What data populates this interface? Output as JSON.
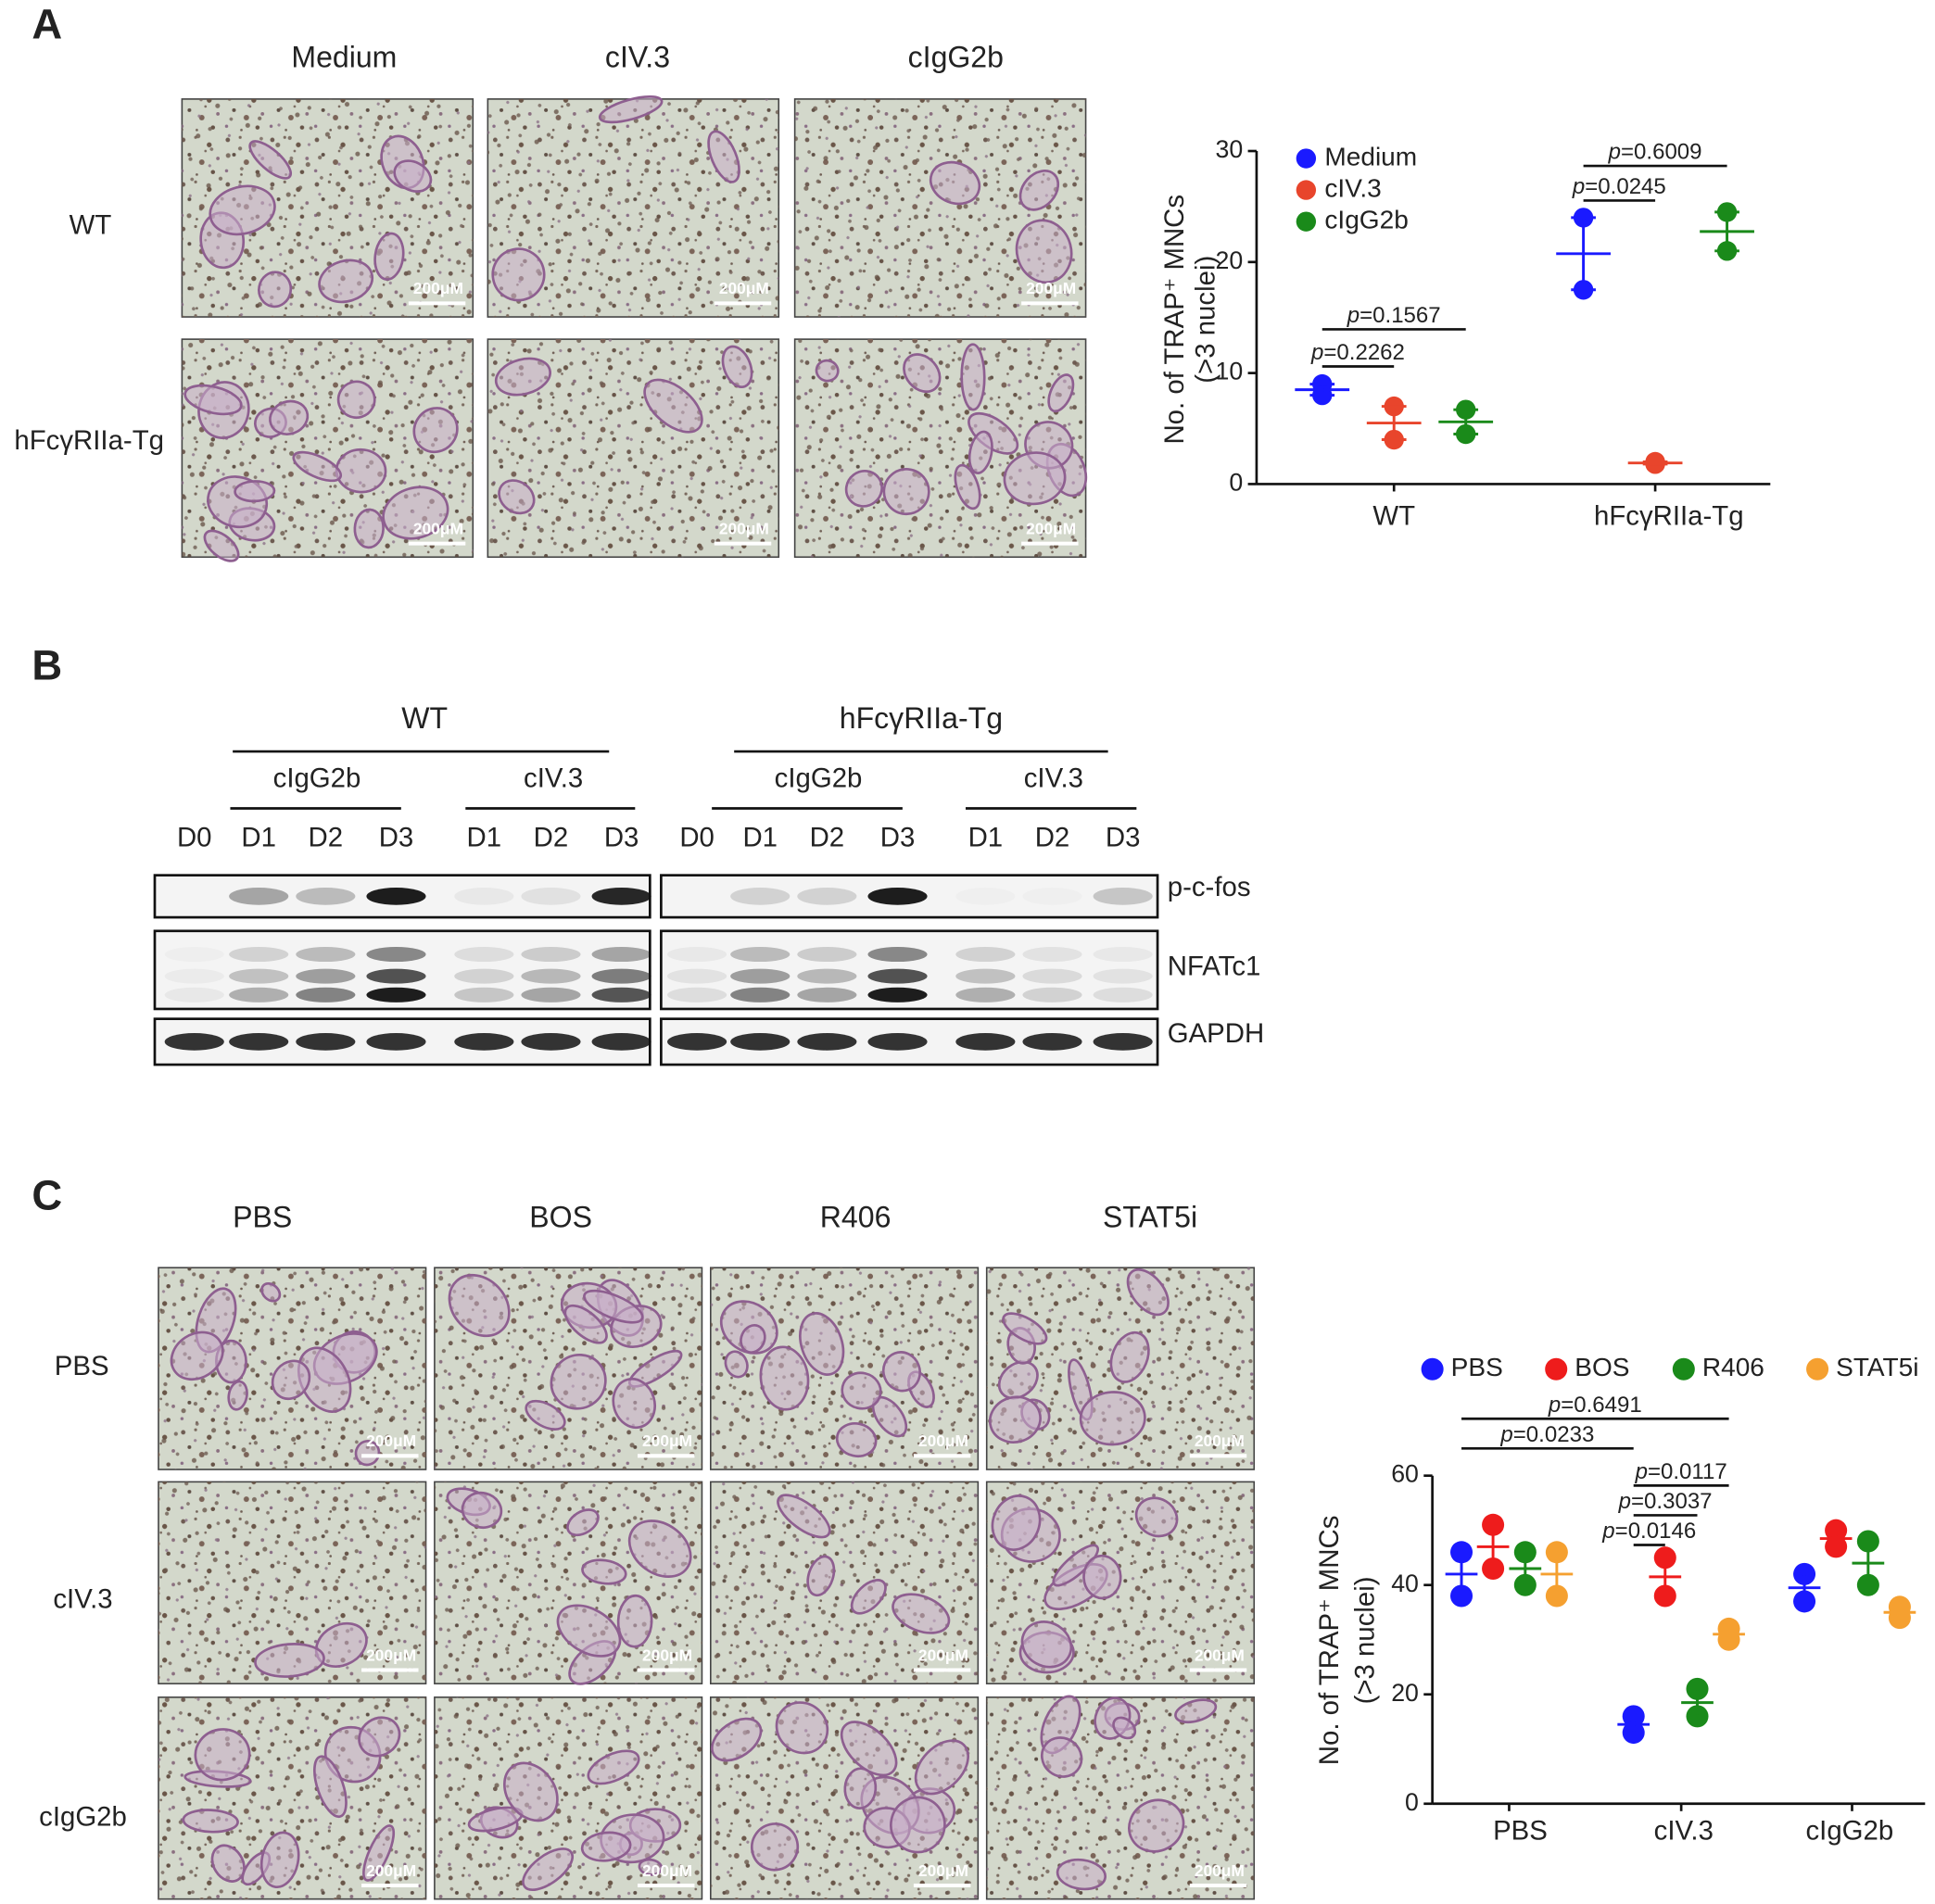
{
  "panel_a": {
    "label": "A",
    "columns": [
      "Medium",
      "cIV.3",
      "cIgG2b"
    ],
    "rows": [
      "WT",
      "hFcγRIIa-Tg"
    ],
    "scale_bar": "200μM"
  },
  "panel_b": {
    "label": "B",
    "groups": [
      {
        "name": "WT",
        "baseline": "D0",
        "treatments": [
          {
            "name": "cIgG2b",
            "days": [
              "D1",
              "D2",
              "D3"
            ]
          },
          {
            "name": "cIV.3",
            "days": [
              "D1",
              "D2",
              "D3"
            ]
          }
        ]
      },
      {
        "name": "hFcγRIIa-Tg",
        "baseline": "D0",
        "treatments": [
          {
            "name": "cIgG2b",
            "days": [
              "D1",
              "D2",
              "D3"
            ]
          },
          {
            "name": "cIV.3",
            "days": [
              "D1",
              "D2",
              "D3"
            ]
          }
        ]
      }
    ],
    "proteins": [
      "p-c-fos",
      "NFATc1",
      "GAPDH"
    ]
  },
  "panel_c": {
    "label": "C",
    "columns": [
      "PBS",
      "BOS",
      "R406",
      "STAT5i"
    ],
    "rows": [
      "PBS",
      "cIV.3",
      "cIgG2b"
    ],
    "scale_bar": "200μM"
  },
  "chart_data": [
    {
      "type": "dot",
      "y_label": [
        "No. of  TRAP⁺ MNCs",
        "(>3 nuclei)"
      ],
      "categories": [
        "WT",
        "hFcγRIIa-Tg"
      ],
      "series": [
        {
          "name": "Medium",
          "color": "#1a1aff",
          "values": [
            [
              9,
              8
            ],
            [
              24,
              17.5
            ]
          ]
        },
        {
          "name": "cIV.3",
          "color": "#e8452c",
          "values": [
            [
              7,
              4
            ],
            [
              2,
              1.8
            ]
          ]
        },
        {
          "name": "cIgG2b",
          "color": "#1a8a1a",
          "values": [
            [
              6.7,
              4.5
            ],
            [
              24.5,
              21
            ]
          ]
        }
      ],
      "ylim": [
        0,
        30
      ],
      "yticks": [
        0,
        10,
        20,
        30
      ],
      "annotations": [
        {
          "text": "p=0.1567",
          "from": {
            "category": "WT",
            "series": "Medium"
          },
          "to": {
            "category": "WT",
            "series": "cIgG2b"
          }
        },
        {
          "text": "p=0.2262",
          "from": {
            "category": "WT",
            "series": "Medium"
          },
          "to": {
            "category": "WT",
            "series": "cIV.3"
          }
        },
        {
          "text": "p=0.6009",
          "from": {
            "category": "hFcγRIIa-Tg",
            "series": "Medium"
          },
          "to": {
            "category": "hFcγRIIa-Tg",
            "series": "cIgG2b"
          }
        },
        {
          "text": "p=0.0245",
          "from": {
            "category": "hFcγRIIa-Tg",
            "series": "Medium"
          },
          "to": {
            "category": "hFcγRIIa-Tg",
            "series": "cIV.3"
          }
        }
      ]
    },
    {
      "type": "dot",
      "y_label": [
        "No. of  TRAP⁺ MNCs",
        "(>3 nuclei)"
      ],
      "categories": [
        "PBS",
        "cIV.3",
        "cIgG2b"
      ],
      "series": [
        {
          "name": "PBS",
          "color": "#1a1aff",
          "values": [
            [
              46,
              38
            ],
            [
              16,
              13
            ],
            [
              42,
              37
            ]
          ]
        },
        {
          "name": "BOS",
          "color": "#ee1c1c",
          "values": [
            [
              51,
              43
            ],
            [
              45,
              38
            ],
            [
              50,
              47
            ]
          ]
        },
        {
          "name": "R406",
          "color": "#1a8a1a",
          "values": [
            [
              46,
              40
            ],
            [
              21,
              16
            ],
            [
              48,
              40
            ]
          ]
        },
        {
          "name": "STAT5i",
          "color": "#f5a030",
          "values": [
            [
              46,
              38
            ],
            [
              32,
              30
            ],
            [
              36,
              34
            ]
          ]
        }
      ],
      "ylim": [
        0,
        60
      ],
      "yticks": [
        0,
        20,
        40,
        60
      ],
      "annotations": [
        {
          "text": "p=0.6491",
          "from": {
            "category": "PBS",
            "series": "PBS"
          },
          "to": {
            "category": "cIV.3",
            "series": "STAT5i"
          }
        },
        {
          "text": "p=0.0233",
          "from": {
            "category": "PBS",
            "series": "PBS"
          },
          "to": {
            "category": "cIV.3",
            "series": "PBS"
          }
        },
        {
          "text": "p=0.0117",
          "from": {
            "category": "cIV.3",
            "series": "PBS"
          },
          "to": {
            "category": "cIV.3",
            "series": "STAT5i"
          }
        },
        {
          "text": "p=0.3037",
          "from": {
            "category": "cIV.3",
            "series": "PBS"
          },
          "to": {
            "category": "cIV.3",
            "series": "R406"
          }
        },
        {
          "text": "p=0.0146",
          "from": {
            "category": "cIV.3",
            "series": "PBS"
          },
          "to": {
            "category": "cIV.3",
            "series": "BOS"
          }
        }
      ]
    }
  ]
}
